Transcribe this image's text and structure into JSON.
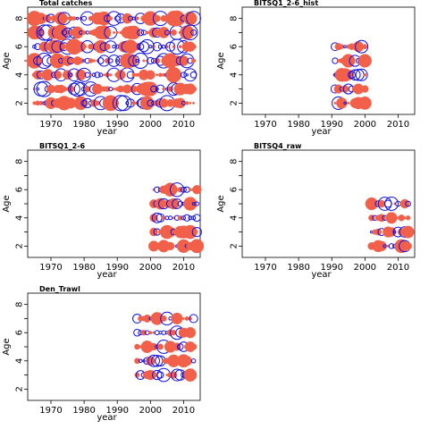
{
  "colors": {
    "positive": "#f2604a",
    "negative": "#1010e8",
    "frame": "#000000"
  },
  "chart_data": [
    {
      "type": "scatter",
      "title": "Total catches",
      "xlabel": "year",
      "ylabel": "Age",
      "xlim": [
        1963,
        2015
      ],
      "ylim": [
        1.2,
        8.8
      ],
      "xticks": [
        1970,
        1980,
        1990,
        2000,
        2010
      ],
      "yticks": [
        2,
        4,
        6,
        8
      ],
      "x_start": 1965,
      "x_end": 2013,
      "ages": [
        2,
        3,
        4,
        5,
        6,
        7,
        8
      ],
      "pattern": "dense"
    },
    {
      "type": "scatter",
      "title": "BITSQ1_2-6_hist",
      "xlabel": "year",
      "ylabel": "Age",
      "xlim": [
        1963,
        2015
      ],
      "ylim": [
        1.2,
        8.8
      ],
      "xticks": [
        1970,
        1980,
        1990,
        2000,
        2010
      ],
      "yticks": [
        2,
        4,
        6,
        8
      ],
      "x_start": 1991,
      "x_end": 2000,
      "ages": [
        2,
        3,
        4,
        5,
        6
      ],
      "pattern": "medium"
    },
    {
      "type": "scatter",
      "title": "BITSQ1_2-6",
      "xlabel": "year",
      "ylabel": "Age",
      "xlim": [
        1963,
        2015
      ],
      "ylim": [
        1.2,
        8.8
      ],
      "xticks": [
        1970,
        1980,
        1990,
        2000,
        2010
      ],
      "yticks": [
        2,
        4,
        6,
        8
      ],
      "x_start": 2001,
      "x_end": 2014,
      "ages": [
        2,
        3,
        4,
        5,
        6
      ],
      "pattern": "medium"
    },
    {
      "type": "scatter",
      "title": "BITSQ4_raw",
      "xlabel": "year",
      "ylabel": "Age",
      "xlim": [
        1963,
        2015
      ],
      "ylim": [
        1.2,
        8.8
      ],
      "xticks": [
        1970,
        1980,
        1990,
        2000,
        2010
      ],
      "yticks": [
        2,
        4,
        6,
        8
      ],
      "x_start": 2002,
      "x_end": 2013,
      "ages": [
        2,
        3,
        4,
        5
      ],
      "pattern": "medium"
    },
    {
      "type": "scatter",
      "title": "Den_Trawl",
      "xlabel": "year",
      "ylabel": "Age",
      "xlim": [
        1963,
        2015
      ],
      "ylim": [
        1.2,
        8.8
      ],
      "xticks": [
        1970,
        1980,
        1990,
        2000,
        2010
      ],
      "yticks": [
        2,
        4,
        6,
        8
      ],
      "x_start": 1996,
      "x_end": 2013,
      "ages": [
        3,
        4,
        5,
        6,
        7
      ],
      "pattern": "medium"
    }
  ]
}
